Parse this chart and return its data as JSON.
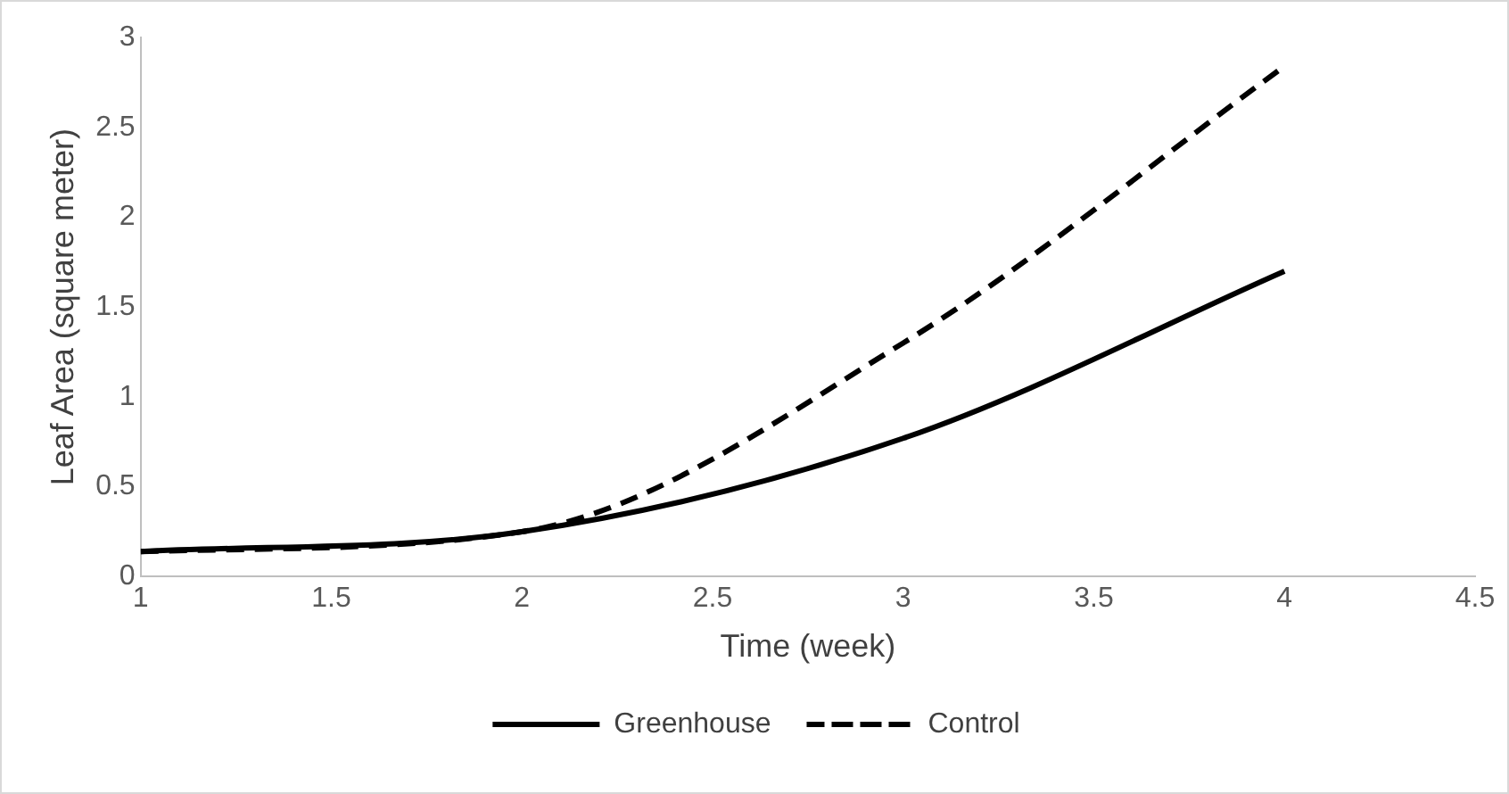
{
  "chart_data": {
    "type": "line",
    "xlabel": "Time (week)",
    "ylabel": "Leaf Area (square meter)",
    "x": [
      1,
      2,
      3,
      4
    ],
    "series": [
      {
        "name": "Greenhouse",
        "color": "#000000",
        "line_style": "solid",
        "values": [
          0.14,
          0.25,
          0.77,
          1.7
        ]
      },
      {
        "name": "Control",
        "color": "#000000",
        "line_style": "dashed",
        "values": [
          0.14,
          0.25,
          1.3,
          2.84
        ]
      }
    ],
    "xlim": [
      1,
      4.5
    ],
    "xticks": [
      1,
      1.5,
      2,
      2.5,
      3,
      3.5,
      4,
      4.5
    ],
    "ylim": [
      0,
      3
    ],
    "yticks": [
      0,
      0.5,
      1,
      1.5,
      2,
      2.5,
      3
    ],
    "grid": false,
    "legend": "bottom",
    "marker": "none"
  }
}
